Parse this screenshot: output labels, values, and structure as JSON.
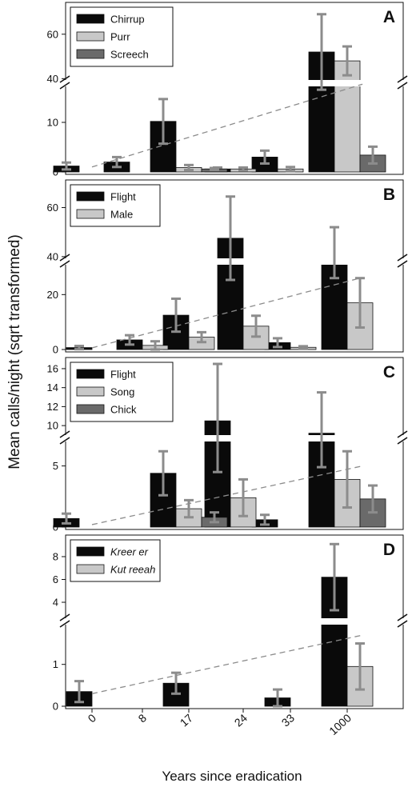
{
  "figure": {
    "ylabel": "Mean calls/night (sqrt transformed)",
    "xlabel": "Years since eradication",
    "xticks": [
      "0",
      "8",
      "17",
      "24",
      "33",
      "1000"
    ]
  },
  "colors": {
    "black_series": "#0a0a0a",
    "light_series": "#c8c8c8",
    "dark_series": "#6a6a6a",
    "error_bar": "#8c8c8c",
    "trend_line": "#8c8c8c"
  },
  "chart_data": [
    {
      "panel": "A",
      "type": "bar",
      "x": [
        "0",
        "8",
        "17",
        "24",
        "33",
        "1000"
      ],
      "broken_axis": true,
      "lower_ylim": [
        0,
        15
      ],
      "upper_ylim": [
        34,
        70
      ],
      "lower_yticks": [
        0,
        10
      ],
      "upper_yticks": [
        40,
        60
      ],
      "legend_position": "top-left",
      "series": [
        {
          "name": "Chirrup",
          "values": [
            1.2,
            2.0,
            10.2,
            0.6,
            3.0,
            52.0
          ],
          "err": [
            0.7,
            1.0,
            4.5,
            0.3,
            1.3,
            17.0
          ]
        },
        {
          "name": "Purr",
          "values": [
            0,
            0,
            0.9,
            0.6,
            0.6,
            48.0
          ],
          "err": [
            0,
            0,
            0.5,
            0.3,
            0.4,
            6.5
          ]
        },
        {
          "name": "Screech",
          "values": [
            0,
            0,
            0.6,
            0,
            0,
            3.4
          ],
          "err": [
            0,
            0,
            0.2,
            0,
            0,
            1.7
          ]
        }
      ],
      "trend": {
        "from": [
          0,
          1.0
        ],
        "to": [
          5.3,
          37.5
        ]
      }
    },
    {
      "panel": "B",
      "type": "bar",
      "x": [
        "0",
        "8",
        "17",
        "24",
        "33",
        "1000"
      ],
      "broken_axis": true,
      "lower_ylim": [
        0,
        30
      ],
      "upper_ylim": [
        38,
        68
      ],
      "lower_yticks": [
        0,
        20
      ],
      "upper_yticks": [
        40,
        60
      ],
      "legend_position": "top-left",
      "series": [
        {
          "name": "Flight",
          "values": [
            0.7,
            3.5,
            12.5,
            47.5,
            2.5,
            39.0
          ],
          "err": [
            0.6,
            1.7,
            6.0,
            17.0,
            1.6,
            13.0
          ]
        },
        {
          "name": "Male",
          "values": [
            0,
            1.5,
            4.5,
            8.5,
            0.8,
            17.0
          ],
          "err": [
            0,
            1.5,
            1.8,
            3.8,
            0.4,
            9.0
          ]
        }
      ],
      "trend": {
        "from": [
          0,
          0.6
        ],
        "to": [
          5.3,
          31.5
        ]
      }
    },
    {
      "panel": "C",
      "type": "bar",
      "x": [
        "0",
        "8",
        "17",
        "24",
        "33",
        "1000"
      ],
      "broken_axis": true,
      "lower_ylim": [
        0,
        7
      ],
      "upper_ylim": [
        9,
        16.5
      ],
      "lower_yticks": [
        0,
        5
      ],
      "upper_yticks": [
        10,
        12,
        14,
        16
      ],
      "legend_position": "top-left",
      "series": [
        {
          "name": "Flight",
          "values": [
            0.7,
            0,
            4.4,
            10.5,
            0.6,
            9.2
          ],
          "err": [
            0.4,
            0,
            1.8,
            6.0,
            0.4,
            4.3
          ]
        },
        {
          "name": "Song",
          "values": [
            0,
            0,
            1.5,
            2.4,
            0,
            3.9
          ],
          "err": [
            0,
            0,
            0.7,
            1.5,
            0,
            2.3
          ]
        },
        {
          "name": "Chick",
          "values": [
            0,
            0,
            0.8,
            0,
            0,
            2.3
          ],
          "err": [
            0,
            0,
            0.4,
            0,
            0,
            1.1
          ]
        }
      ],
      "trend": {
        "from": [
          0,
          0.2
        ],
        "to": [
          5.3,
          5.0
        ]
      }
    },
    {
      "panel": "D",
      "type": "bar",
      "x": [
        "0",
        "8",
        "17",
        "24",
        "33",
        "1000"
      ],
      "broken_axis": true,
      "lower_ylim": [
        0,
        1.95
      ],
      "upper_ylim": [
        2.6,
        9.4
      ],
      "lower_yticks": [
        0,
        1
      ],
      "upper_yticks": [
        4,
        6,
        8
      ],
      "legend_position": "top-left",
      "italic_legend": true,
      "series": [
        {
          "name": "Kreer er",
          "values": [
            0.35,
            0,
            0.55,
            0,
            0.2,
            6.2
          ],
          "err": [
            0.25,
            0,
            0.25,
            0,
            0.2,
            2.9
          ]
        },
        {
          "name": "Kut reeah",
          "values": [
            0,
            0,
            0,
            0,
            0,
            0.95
          ],
          "err": [
            0,
            0,
            0,
            0,
            0,
            0.55
          ]
        }
      ],
      "trend": {
        "from": [
          0,
          0.3
        ],
        "to": [
          5.3,
          1.7
        ]
      }
    }
  ]
}
